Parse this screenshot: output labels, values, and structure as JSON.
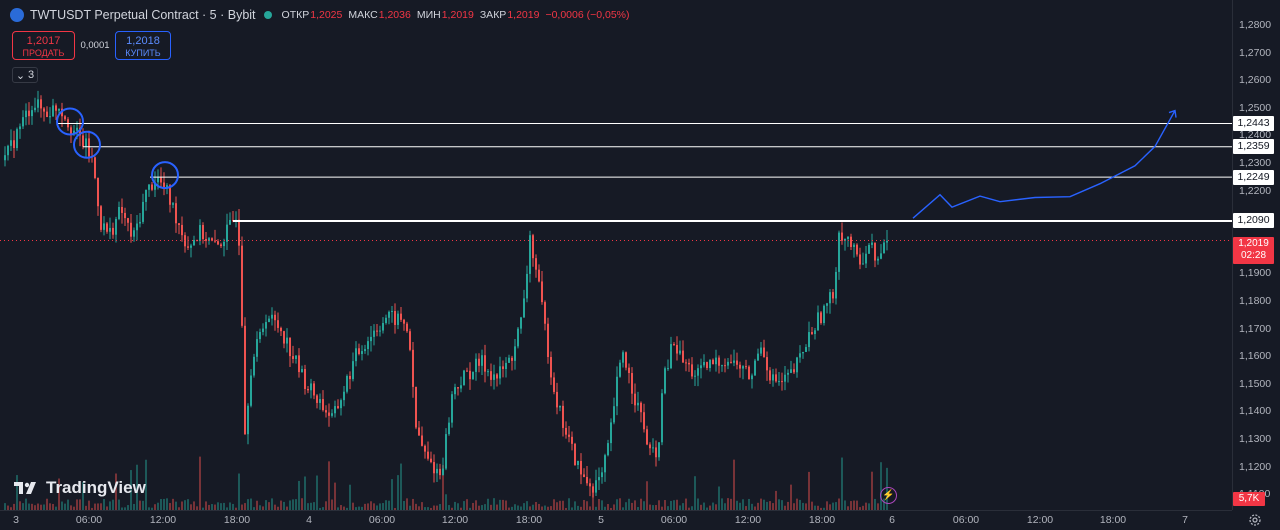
{
  "legend": {
    "symbol_title": "TWTUSDT Perpetual Contract · 5 · Bybit",
    "open_label": "ОТКР",
    "open_value": "1,2025",
    "high_label": "МАКС",
    "high_value": "1,2036",
    "low_label": "МИН",
    "low_value": "1,2019",
    "close_label": "ЗАКР",
    "close_value": "1,2019",
    "change": "−0,0006 (−0,05%)"
  },
  "trade": {
    "sell_price": "1,2017",
    "sell_label": "ПРОДАТЬ",
    "spread": "0,0001",
    "buy_price": "1,2018",
    "buy_label": "КУПИТЬ"
  },
  "indicators_toggle": {
    "count": "3"
  },
  "brand": {
    "name": "TradingView"
  },
  "price_scale": {
    "ticks": [
      "1,2800",
      "1,2700",
      "1,2600",
      "1,2500",
      "1,2400",
      "1,2300",
      "1,2200",
      "1,2100",
      "1,1900",
      "1,1800",
      "1,1700",
      "1,1600",
      "1,1500",
      "1,1400",
      "1,1300",
      "1,1200",
      "1,1100"
    ]
  },
  "levels": [
    "1,2443",
    "1,2359",
    "1,2249",
    "1,2090"
  ],
  "current_price": {
    "value": "1,2019",
    "countdown": "02:28"
  },
  "volume_tag": "5,7K",
  "time_scale": {
    "ticks": [
      "3",
      "06:00",
      "12:00",
      "18:00",
      "4",
      "06:00",
      "12:00",
      "18:00",
      "5",
      "06:00",
      "12:00",
      "18:00",
      "6",
      "06:00",
      "12:00",
      "18:00",
      "7"
    ]
  },
  "colors": {
    "background": "#161a25",
    "up_candle": "#26a69a",
    "down_candle": "#ef5350",
    "level_line": "#ffffff",
    "circle_marker": "#2962ff",
    "forecast_line": "#2962ff",
    "current_price": "#f23645"
  },
  "icons": [
    "chevron-down-icon",
    "tradingview-logo-icon",
    "lightning-icon",
    "gear-icon"
  ]
}
